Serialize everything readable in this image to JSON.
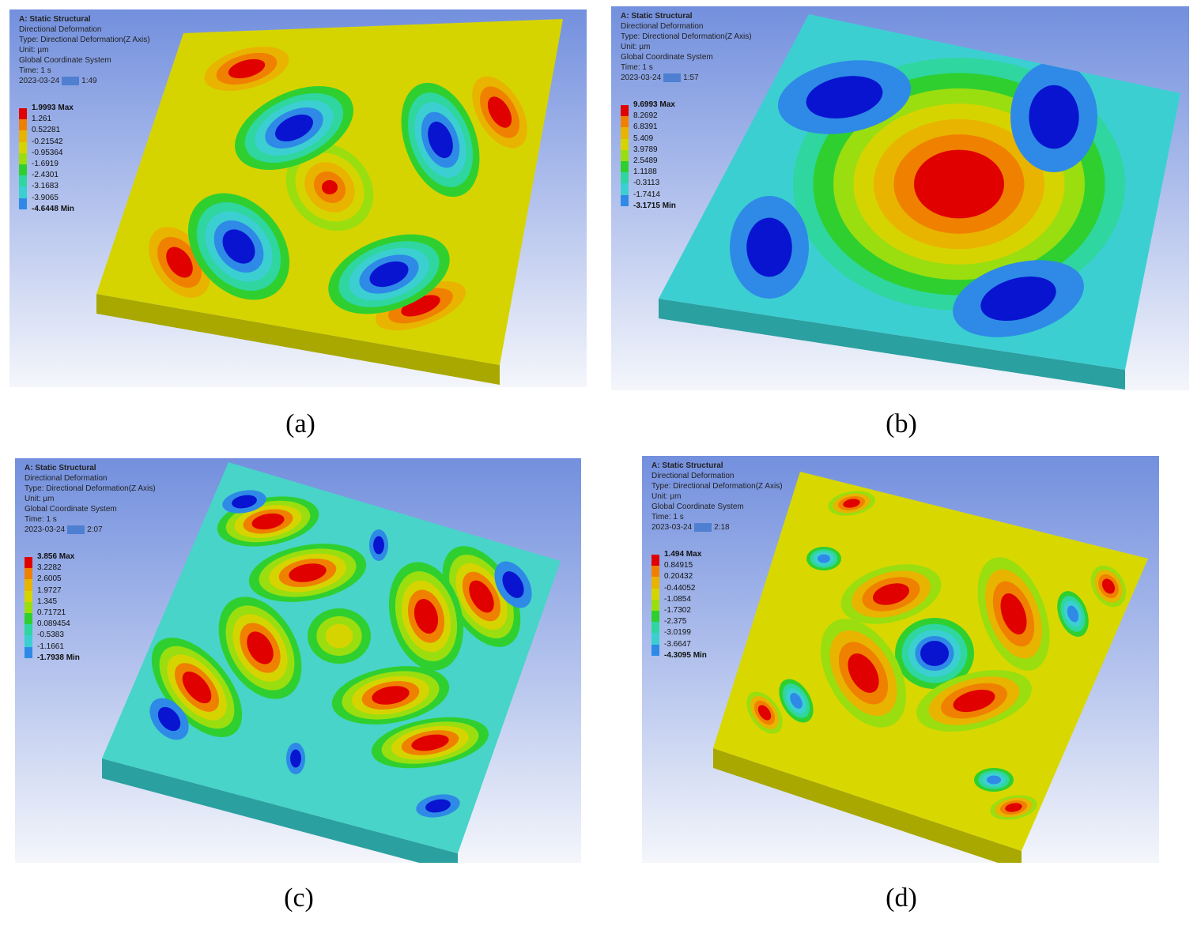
{
  "panels": [
    {
      "caption": "(a)",
      "header": [
        "A: Static Structural",
        "Directional Deformation",
        "Type: Directional Deformation(Z Axis)",
        "Unit: µm",
        "Global Coordinate System",
        "Time: 1 s"
      ],
      "date": "2023-03-24",
      "time": "1:49",
      "legend": [
        "1.9993 Max",
        "1.261",
        "0.52281",
        "-0.21542",
        "-0.95364",
        "-1.6919",
        "-2.4301",
        "-3.1683",
        "-3.9065",
        "-4.6448 Min"
      ]
    },
    {
      "caption": "(b)",
      "header": [
        "A: Static Structural",
        "Directional Deformation",
        "Type: Directional Deformation(Z Axis)",
        "Unit: µm",
        "Global Coordinate System",
        "Time: 1 s"
      ],
      "date": "2023-03-24",
      "time": "1:57",
      "legend": [
        "9.6993 Max",
        "8.2692",
        "6.8391",
        "5.409",
        "3.9789",
        "2.5489",
        "1.1188",
        "-0.3113",
        "-1.7414",
        "-3.1715 Min"
      ]
    },
    {
      "caption": "(c)",
      "header": [
        "A: Static Structural",
        "Directional Deformation",
        "Type: Directional Deformation(Z Axis)",
        "Unit: µm",
        "Global Coordinate System",
        "Time: 1 s"
      ],
      "date": "2023-03-24",
      "time": "2:07",
      "legend": [
        "3.856 Max",
        "3.2282",
        "2.6005",
        "1.9727",
        "1.345",
        "0.71721",
        "0.089454",
        "-0.5383",
        "-1.1661",
        "-1.7938 Min"
      ]
    },
    {
      "caption": "(d)",
      "header": [
        "A: Static Structural",
        "Directional Deformation",
        "Type: Directional Deformation(Z Axis)",
        "Unit: µm",
        "Global Coordinate System",
        "Time: 1 s"
      ],
      "date": "2023-03-24",
      "time": "2:18",
      "legend": [
        "1.494 Max",
        "0.84915",
        "0.20432",
        "-0.44052",
        "-1.0854",
        "-1.7302",
        "-2.375",
        "-3.0199",
        "-3.6647",
        "-4.3095 Min"
      ]
    }
  ]
}
